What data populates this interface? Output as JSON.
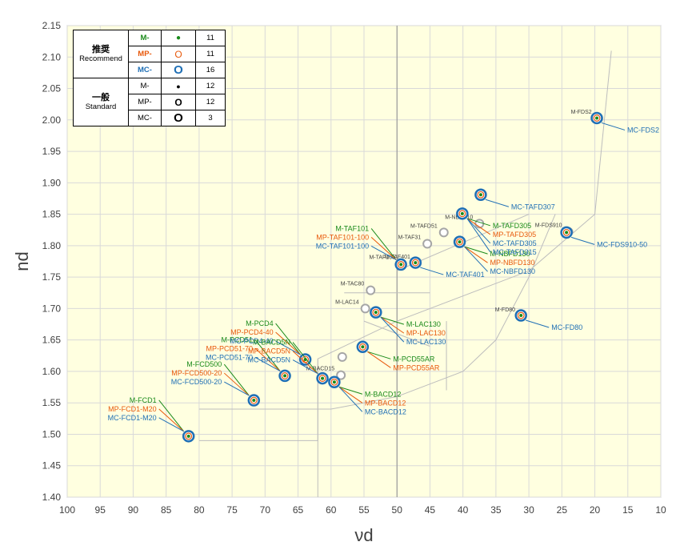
{
  "chart_data": {
    "type": "scatter",
    "xlabel": "νd",
    "ylabel": "nd",
    "xlim": [
      100,
      10
    ],
    "ylim": [
      1.4,
      2.15
    ],
    "x_axis_reversed": true,
    "xticks": [
      "100",
      "95",
      "90",
      "85",
      "80",
      "75",
      "70",
      "65",
      "60",
      "55",
      "50",
      "45",
      "40",
      "35",
      "30",
      "25",
      "20",
      "15",
      "10"
    ],
    "yticks": [
      "1.40",
      "1.45",
      "1.50",
      "1.55",
      "1.60",
      "1.65",
      "1.70",
      "1.75",
      "1.80",
      "1.85",
      "1.90",
      "1.95",
      "2.00",
      "2.05",
      "2.10",
      "2.15"
    ],
    "grid": "major gridlines on both axes",
    "plot_background": "#ffffe0",
    "reference_lines": {
      "vertical_x": 50,
      "note": "vertical line at νd = 50 and grey glass-map boundary lines"
    },
    "recommended_glasses": [
      {
        "vd": 81.6,
        "nd": 1.497,
        "labels": [
          "M-FCD1",
          "MP-FCD1-M20",
          "MC-FCD1-M20"
        ]
      },
      {
        "vd": 71.7,
        "nd": 1.554,
        "labels": [
          "M-FCD500",
          "MP-FCD500-20",
          "MC-FCD500-20"
        ]
      },
      {
        "vd": 67.0,
        "nd": 1.593,
        "labels": [
          "M-PCD51",
          "MP-PCD51-70",
          "MC-PCD51-70"
        ]
      },
      {
        "vd": 63.9,
        "nd": 1.619,
        "labels": [
          "M-PCD4",
          "MP-PCD4-40",
          "MC-PCD4-40"
        ]
      },
      {
        "vd": 61.3,
        "nd": 1.589,
        "labels": [
          "M-BACD5N",
          "MP-BACD5N",
          "MC-BACD5N"
        ]
      },
      {
        "vd": 59.5,
        "nd": 1.583,
        "labels": [
          "M-BACD12",
          "MP-BACD12",
          "MC-BACD12"
        ]
      },
      {
        "vd": 55.2,
        "nd": 1.639,
        "labels": [
          "M-PCD55AR",
          "MP-PCD55AR"
        ]
      },
      {
        "vd": 53.2,
        "nd": 1.694,
        "labels": [
          "M-LAC130",
          "MP-LAC130",
          "MC-LAC130"
        ]
      },
      {
        "vd": 49.4,
        "nd": 1.77,
        "labels": [
          "M-TAF101",
          "MP-TAF101-100",
          "MC-TAF101-100"
        ]
      },
      {
        "vd": 47.2,
        "nd": 1.773,
        "labels": [
          "MC-TAF401"
        ]
      },
      {
        "vd": 40.5,
        "nd": 1.806,
        "labels": [
          "M-NBFD130",
          "MP-NBFD130",
          "MC-NBFD130"
        ]
      },
      {
        "vd": 40.1,
        "nd": 1.851,
        "labels": [
          "M-TAFD305",
          "MP-TAFD305",
          "MC-TAFD305",
          "MC-TAFD315"
        ]
      },
      {
        "vd": 37.3,
        "nd": 1.881,
        "labels": [
          "MC-TAFD307"
        ]
      },
      {
        "vd": 31.2,
        "nd": 1.689,
        "labels": [
          "MC-FD80"
        ]
      },
      {
        "vd": 24.3,
        "nd": 1.821,
        "labels": [
          "MC-FDS910-50"
        ]
      },
      {
        "vd": 19.7,
        "nd": 2.003,
        "labels": [
          "MC-FDS2"
        ]
      }
    ],
    "standard_glasses": [
      {
        "vd": 58.3,
        "nd": 1.623,
        "label": ""
      },
      {
        "vd": 54.8,
        "nd": 1.7,
        "label": "M-LAC14"
      },
      {
        "vd": 54.0,
        "nd": 1.729,
        "label": "M-TAC80"
      },
      {
        "vd": 49.3,
        "nd": 1.771,
        "label": "M-TAF105"
      },
      {
        "vd": 45.4,
        "nd": 1.803,
        "label": "M-TAF31"
      },
      {
        "vd": 42.9,
        "nd": 1.821,
        "label": "M-TAFD51"
      },
      {
        "vd": 37.5,
        "nd": 1.835,
        "label": "M-NBFD10"
      },
      {
        "vd": 31.1,
        "nd": 1.688,
        "label": "M-FD80"
      },
      {
        "vd": 24.0,
        "nd": 1.822,
        "label": "M-FDS910"
      },
      {
        "vd": 19.5,
        "nd": 2.002,
        "label": "M-FDS2"
      },
      {
        "vd": 58.5,
        "nd": 1.594,
        "label": "M-BACD15"
      },
      {
        "vd": 47.0,
        "nd": 1.772,
        "label": "M-TAF401"
      }
    ],
    "series_colors": {
      "M": "#1a8a1a",
      "MP": "#e8590c",
      "MC": "#1f6fb5",
      "standard_marker": "#a6a6a6"
    },
    "legend_table": {
      "rows": [
        {
          "group": "推奨",
          "group_sub": "Recommend",
          "code": "M-",
          "symbol": "●",
          "count": "11",
          "color": "#1a8a1a"
        },
        {
          "group": "",
          "group_sub": "",
          "code": "MP-",
          "symbol": "O",
          "count": "11",
          "color": "#e8590c"
        },
        {
          "group": "",
          "group_sub": "",
          "code": "MC-",
          "symbol": "O",
          "count": "16",
          "color": "#1f6fb5"
        },
        {
          "group": "一般",
          "group_sub": "Standard",
          "code": "M-",
          "symbol": "●",
          "count": "12",
          "color": "#000000"
        },
        {
          "group": "",
          "group_sub": "",
          "code": "MP-",
          "symbol": "O",
          "count": "12",
          "color": "#000000"
        },
        {
          "group": "",
          "group_sub": "",
          "code": "MC-",
          "symbol": "O",
          "count": "3",
          "color": "#000000"
        }
      ]
    }
  }
}
